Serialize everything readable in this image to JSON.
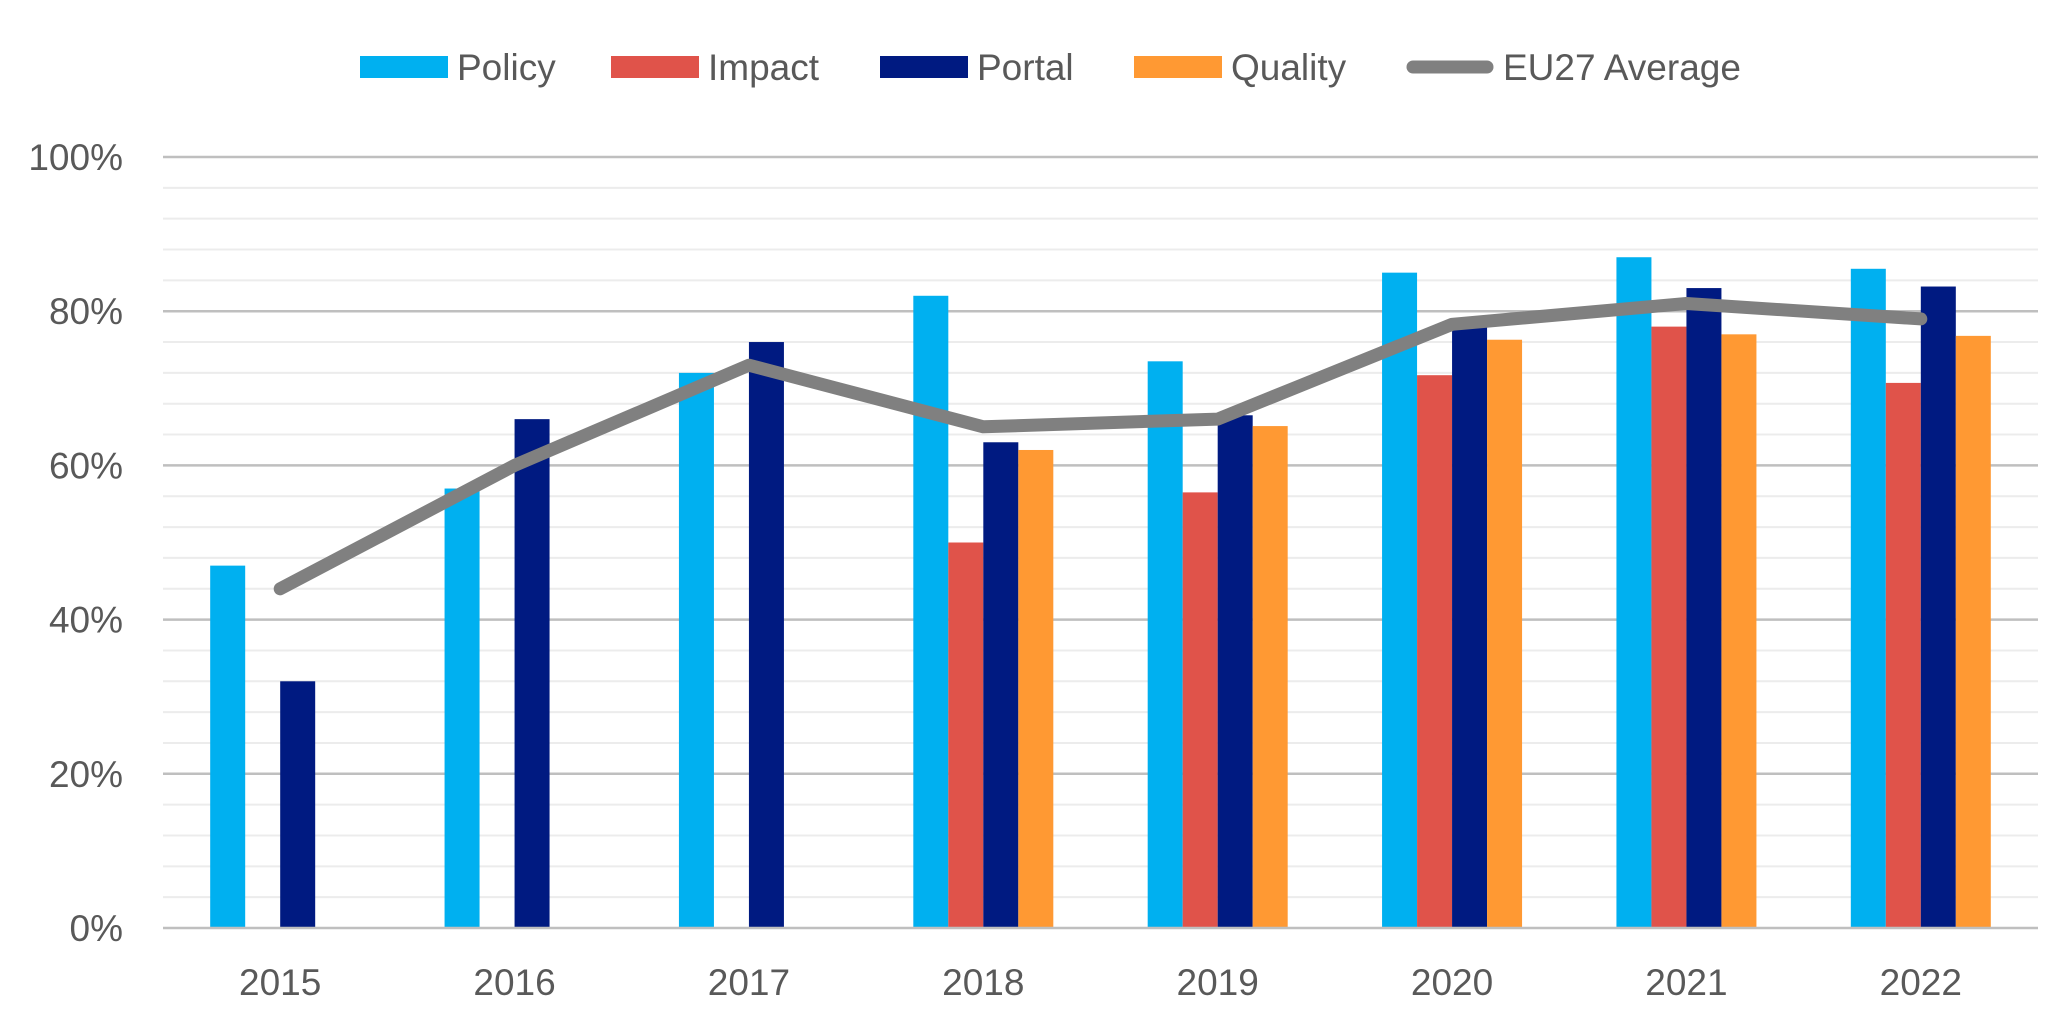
{
  "chart_data": {
    "type": "bar",
    "title": "",
    "xlabel": "",
    "ylabel": "",
    "categories": [
      "2015",
      "2016",
      "2017",
      "2018",
      "2019",
      "2020",
      "2021",
      "2022"
    ],
    "ylim": [
      0,
      100
    ],
    "y_ticks": [
      0,
      20,
      40,
      60,
      80,
      100
    ],
    "y_tick_labels": [
      "0%",
      "20%",
      "40%",
      "60%",
      "80%",
      "100%"
    ],
    "y_unit": "%",
    "grid": {
      "major": true,
      "minor": true
    },
    "legend_position": "top",
    "series": [
      {
        "name": "Policy",
        "type": "bar",
        "color": "#00B0F0",
        "values": [
          47,
          57,
          72,
          82,
          73.5,
          85,
          87,
          85.5
        ]
      },
      {
        "name": "Impact",
        "type": "bar",
        "color": "#E0534A",
        "values": [
          null,
          null,
          null,
          50,
          56.5,
          71.7,
          78,
          70.7
        ]
      },
      {
        "name": "Portal",
        "type": "bar",
        "color": "#001A81",
        "values": [
          32,
          66,
          76,
          63,
          66.5,
          78,
          83,
          83.2
        ]
      },
      {
        "name": "Quality",
        "type": "bar",
        "color": "#FF9933",
        "values": [
          null,
          null,
          null,
          62,
          65.1,
          76.3,
          77,
          76.8
        ]
      },
      {
        "name": "EU27 Average",
        "type": "line",
        "color": "#808080",
        "values": [
          44,
          60,
          73,
          65,
          66,
          78.3,
          81,
          79
        ]
      }
    ]
  }
}
